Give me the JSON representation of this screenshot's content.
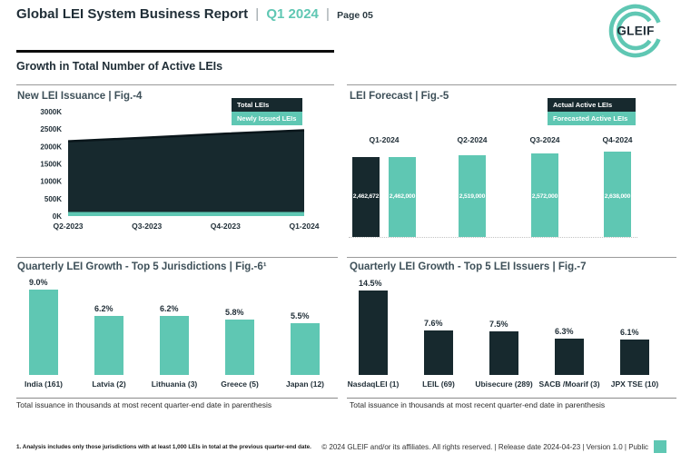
{
  "page": {
    "header": {
      "title": "Global LEI System Business Report",
      "divider": "|",
      "period": "Q1 2024",
      "page_label": "Page 05"
    },
    "logo": {
      "text": "GLEIF"
    },
    "section_title": "Growth in Total Number of Active LEIs",
    "footer": {
      "footnote": "1. Analysis includes only those jurisdictions with at least 1,000 LEIs in total at the previous quarter-end date.",
      "copyright": "© 2024 GLEIF and/or its affiliates. All rights reserved. | Release date 2024-04-23 | Version 1.0 | Public"
    },
    "colors": {
      "teal": "#5FC7B3",
      "dark": "#17292E",
      "navy": "#1F2D36",
      "line_gray": "#999999"
    }
  },
  "chart_data": [
    {
      "id": "fig4",
      "type": "area",
      "title": "New LEI Issuance | Fig.-4",
      "x": [
        "Q2-2023",
        "Q3-2023",
        "Q4-2023",
        "Q1-2024"
      ],
      "series": [
        {
          "name": "Total LEIs",
          "color": "#17292E",
          "values": [
            2150000,
            2255000,
            2365000,
            2465000
          ]
        },
        {
          "name": "Newly Issued LEIs",
          "color": "#5FC7B3",
          "values": [
            55000,
            55000,
            60000,
            60000
          ]
        }
      ],
      "ylim": [
        0,
        3000000
      ],
      "ytick_labels": [
        "0K",
        "500K",
        "1000K",
        "1500K",
        "2000K",
        "2500K",
        "3000K"
      ],
      "legend_position": "top-right",
      "grid": false
    },
    {
      "id": "fig5",
      "type": "bar",
      "title": "LEI Forecast | Fig.-5",
      "categories": [
        "Q1-2024",
        "Q2-2024",
        "Q3-2024",
        "Q4-2024"
      ],
      "series": [
        {
          "name": "Actual Active LEIs",
          "color": "#17292E",
          "values": [
            2462672,
            null,
            null,
            null
          ]
        },
        {
          "name": "Forecasted Active LEIs",
          "color": "#5FC7B3",
          "values": [
            2462000,
            2519000,
            2572000,
            2638000
          ]
        }
      ],
      "bar_labels": [
        "2,462,672",
        "2,462,000",
        "2,519,000",
        "2,572,000",
        "2,638,000"
      ],
      "legend_position": "top-right",
      "grid": false
    },
    {
      "id": "fig6",
      "type": "bar",
      "title": "Quarterly LEI Growth - Top 5 Jurisdictions | Fig.-6¹",
      "categories": [
        "India (161)",
        "Latvia (2)",
        "Lithuania (3)",
        "Greece (5)",
        "Japan (12)"
      ],
      "values": [
        9.0,
        6.2,
        6.2,
        5.8,
        5.5
      ],
      "value_labels": [
        "9.0%",
        "6.2%",
        "6.2%",
        "5.8%",
        "5.5%"
      ],
      "color": "#5FC7B3",
      "note": "Total issuance in thousands at most recent quarter-end date in parenthesis",
      "grid": false
    },
    {
      "id": "fig7",
      "type": "bar",
      "title": "Quarterly LEI Growth - Top 5 LEI Issuers | Fig.-7",
      "categories": [
        "NasdaqLEI (1)",
        "LEIL (69)",
        "Ubisecure (289)",
        "SACB /Moarif (3)",
        "JPX TSE (10)"
      ],
      "values": [
        14.5,
        7.6,
        7.5,
        6.3,
        6.1
      ],
      "value_labels": [
        "14.5%",
        "7.6%",
        "7.5%",
        "6.3%",
        "6.1%"
      ],
      "color": "#17292E",
      "note": "Total issuance in thousands at most recent quarter-end date in parenthesis",
      "grid": false
    }
  ]
}
